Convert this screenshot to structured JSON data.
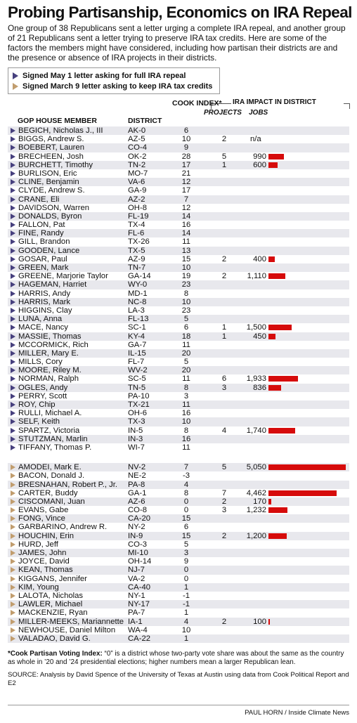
{
  "title": "Probing Partisanship, Economics on IRA Repeal",
  "intro": "One group of 38 Republicans sent a letter urging a complete IRA repeal, and another group of 21 Republicans sent a letter trying to preserve IRA tax credits. Here are some of the factors the members might have considered, including how partisan their districts are and the presence or absence of IRA projects in their districts.",
  "legend": {
    "repeal": "Signed May 1 letter asking for full IRA repeal",
    "keep": "Signed March 9 letter asking to keep IRA tax credits"
  },
  "colors": {
    "repeal": "#47407e",
    "keep": "#c19d6e",
    "bar": "#d60b0b"
  },
  "headers": {
    "member": "GOP HOUSE MEMBER",
    "district": "DISTRICT",
    "cook": "COOK INDEX*",
    "impact": "IRA IMPACT IN DISTRICT",
    "projects": "PROJECTS",
    "jobs": "JOBS"
  },
  "chart_data": {
    "type": "table",
    "title": "Probing Partisanship, Economics on IRA Repeal",
    "jobs_bar_max": 5050,
    "groups": [
      {
        "name": "Signed May 1 letter asking for full IRA repeal",
        "rows": [
          {
            "member": "BEGICH, Nicholas J., III",
            "district": "AK-0",
            "cook": "6",
            "projects": "",
            "jobs": "",
            "jobs_value": null
          },
          {
            "member": "BIGGS, Andrew S.",
            "district": "AZ-5",
            "cook": "10",
            "projects": "2",
            "jobs": "n/a",
            "jobs_value": null
          },
          {
            "member": "BOEBERT, Lauren",
            "district": "CO-4",
            "cook": "9",
            "projects": "",
            "jobs": "",
            "jobs_value": null
          },
          {
            "member": "BRECHEEN, Josh",
            "district": "OK-2",
            "cook": "28",
            "projects": "5",
            "jobs": "990",
            "jobs_value": 990
          },
          {
            "member": "BURCHETT, Timothy",
            "district": "TN-2",
            "cook": "17",
            "projects": "1",
            "jobs": "600",
            "jobs_value": 600
          },
          {
            "member": "BURLISON, Eric",
            "district": "MO-7",
            "cook": "21",
            "projects": "",
            "jobs": "",
            "jobs_value": null
          },
          {
            "member": "CLINE, Benjamin",
            "district": "VA-6",
            "cook": "12",
            "projects": "",
            "jobs": "",
            "jobs_value": null
          },
          {
            "member": "CLYDE, Andrew S.",
            "district": "GA-9",
            "cook": "17",
            "projects": "",
            "jobs": "",
            "jobs_value": null
          },
          {
            "member": "CRANE, Eli",
            "district": "AZ-2",
            "cook": "7",
            "projects": "",
            "jobs": "",
            "jobs_value": null
          },
          {
            "member": "DAVIDSON, Warren",
            "district": "OH-8",
            "cook": "12",
            "projects": "",
            "jobs": "",
            "jobs_value": null
          },
          {
            "member": "DONALDS, Byron",
            "district": "FL-19",
            "cook": "14",
            "projects": "",
            "jobs": "",
            "jobs_value": null
          },
          {
            "member": "FALLON, Pat",
            "district": "TX-4",
            "cook": "16",
            "projects": "",
            "jobs": "",
            "jobs_value": null
          },
          {
            "member": "FINE, Randy",
            "district": "FL-6",
            "cook": "14",
            "projects": "",
            "jobs": "",
            "jobs_value": null
          },
          {
            "member": "GILL, Brandon",
            "district": "TX-26",
            "cook": "11",
            "projects": "",
            "jobs": "",
            "jobs_value": null
          },
          {
            "member": "GOODEN, Lance",
            "district": "TX-5",
            "cook": "13",
            "projects": "",
            "jobs": "",
            "jobs_value": null
          },
          {
            "member": "GOSAR, Paul",
            "district": "AZ-9",
            "cook": "15",
            "projects": "2",
            "jobs": "400",
            "jobs_value": 400
          },
          {
            "member": "GREEN, Mark",
            "district": "TN-7",
            "cook": "10",
            "projects": "",
            "jobs": "",
            "jobs_value": null
          },
          {
            "member": "GREENE, Marjorie Taylor",
            "district": "GA-14",
            "cook": "19",
            "projects": "2",
            "jobs": "1,110",
            "jobs_value": 1110
          },
          {
            "member": "HAGEMAN, Harriet",
            "district": "WY-0",
            "cook": "23",
            "projects": "",
            "jobs": "",
            "jobs_value": null
          },
          {
            "member": "HARRIS, Andy",
            "district": "MD-1",
            "cook": "8",
            "projects": "",
            "jobs": "",
            "jobs_value": null
          },
          {
            "member": "HARRIS, Mark",
            "district": "NC-8",
            "cook": "10",
            "projects": "",
            "jobs": "",
            "jobs_value": null
          },
          {
            "member": "HIGGINS, Clay",
            "district": "LA-3",
            "cook": "23",
            "projects": "",
            "jobs": "",
            "jobs_value": null
          },
          {
            "member": "LUNA, Anna",
            "district": "FL-13",
            "cook": "5",
            "projects": "",
            "jobs": "",
            "jobs_value": null
          },
          {
            "member": "MACE, Nancy",
            "district": "SC-1",
            "cook": "6",
            "projects": "1",
            "jobs": "1,500",
            "jobs_value": 1500
          },
          {
            "member": "MASSIE, Thomas",
            "district": "KY-4",
            "cook": "18",
            "projects": "1",
            "jobs": "450",
            "jobs_value": 450
          },
          {
            "member": "MCCORMICK, Rich",
            "district": "GA-7",
            "cook": "11",
            "projects": "",
            "jobs": "",
            "jobs_value": null
          },
          {
            "member": "MILLER, Mary E.",
            "district": "IL-15",
            "cook": "20",
            "projects": "",
            "jobs": "",
            "jobs_value": null
          },
          {
            "member": "MILLS, Cory",
            "district": "FL-7",
            "cook": "5",
            "projects": "",
            "jobs": "",
            "jobs_value": null
          },
          {
            "member": "MOORE, Riley M.",
            "district": "WV-2",
            "cook": "20",
            "projects": "",
            "jobs": "",
            "jobs_value": null
          },
          {
            "member": "NORMAN, Ralph",
            "district": "SC-5",
            "cook": "11",
            "projects": "6",
            "jobs": "1,933",
            "jobs_value": 1933
          },
          {
            "member": "OGLES, Andy",
            "district": "TN-5",
            "cook": "8",
            "projects": "3",
            "jobs": "836",
            "jobs_value": 836
          },
          {
            "member": "PERRY, Scott",
            "district": "PA-10",
            "cook": "3",
            "projects": "",
            "jobs": "",
            "jobs_value": null
          },
          {
            "member": "ROY, Chip",
            "district": "TX-21",
            "cook": "11",
            "projects": "",
            "jobs": "",
            "jobs_value": null
          },
          {
            "member": "RULLI, Michael A.",
            "district": "OH-6",
            "cook": "16",
            "projects": "",
            "jobs": "",
            "jobs_value": null
          },
          {
            "member": "SELF, Keith",
            "district": "TX-3",
            "cook": "10",
            "projects": "",
            "jobs": "",
            "jobs_value": null
          },
          {
            "member": "SPARTZ, Victoria",
            "district": "IN-5",
            "cook": "8",
            "projects": "4",
            "jobs": "1,740",
            "jobs_value": 1740
          },
          {
            "member": "STUTZMAN, Marlin",
            "district": "IN-3",
            "cook": "16",
            "projects": "",
            "jobs": "",
            "jobs_value": null
          },
          {
            "member": "TIFFANY, Thomas P.",
            "district": "WI-7",
            "cook": "11",
            "projects": "",
            "jobs": "",
            "jobs_value": null
          }
        ]
      },
      {
        "name": "Signed March 9 letter asking to keep IRA tax credits",
        "rows": [
          {
            "member": "AMODEI, Mark E.",
            "district": "NV-2",
            "cook": "7",
            "projects": "5",
            "jobs": "5,050",
            "jobs_value": 5050
          },
          {
            "member": "BACON, Donald J.",
            "district": "NE-2",
            "cook": "-3",
            "projects": "",
            "jobs": "",
            "jobs_value": null
          },
          {
            "member": "BRESNAHAN, Robert P., Jr.",
            "district": "PA-8",
            "cook": "4",
            "projects": "",
            "jobs": "",
            "jobs_value": null
          },
          {
            "member": "CARTER, Buddy",
            "district": "GA-1",
            "cook": "8",
            "projects": "7",
            "jobs": "4,462",
            "jobs_value": 4462
          },
          {
            "member": "CISCOMANI, Juan",
            "district": "AZ-6",
            "cook": "0",
            "projects": "2",
            "jobs": "170",
            "jobs_value": 170
          },
          {
            "member": "EVANS, Gabe",
            "district": "CO-8",
            "cook": "0",
            "projects": "3",
            "jobs": "1,232",
            "jobs_value": 1232
          },
          {
            "member": "FONG, Vince",
            "district": "CA-20",
            "cook": "15",
            "projects": "",
            "jobs": "",
            "jobs_value": null
          },
          {
            "member": "GARBARINO, Andrew R.",
            "district": "NY-2",
            "cook": "6",
            "projects": "",
            "jobs": "",
            "jobs_value": null
          },
          {
            "member": "HOUCHIN, Erin",
            "district": "IN-9",
            "cook": "15",
            "projects": "2",
            "jobs": "1,200",
            "jobs_value": 1200
          },
          {
            "member": "HURD, Jeff",
            "district": "CO-3",
            "cook": "5",
            "projects": "",
            "jobs": "",
            "jobs_value": null
          },
          {
            "member": "JAMES, John",
            "district": "MI-10",
            "cook": "3",
            "projects": "",
            "jobs": "",
            "jobs_value": null
          },
          {
            "member": "JOYCE, David",
            "district": "OH-14",
            "cook": "9",
            "projects": "",
            "jobs": "",
            "jobs_value": null
          },
          {
            "member": "KEAN, Thomas",
            "district": "NJ-7",
            "cook": "0",
            "projects": "",
            "jobs": "",
            "jobs_value": null
          },
          {
            "member": "KIGGANS, Jennifer",
            "district": "VA-2",
            "cook": "0",
            "projects": "",
            "jobs": "",
            "jobs_value": null
          },
          {
            "member": "KIM, Young",
            "district": "CA-40",
            "cook": "1",
            "projects": "",
            "jobs": "",
            "jobs_value": null
          },
          {
            "member": "LALOTA, Nicholas",
            "district": "NY-1",
            "cook": "-1",
            "projects": "",
            "jobs": "",
            "jobs_value": null
          },
          {
            "member": "LAWLER, Michael",
            "district": "NY-17",
            "cook": "-1",
            "projects": "",
            "jobs": "",
            "jobs_value": null
          },
          {
            "member": "MACKENZIE, Ryan",
            "district": "PA-7",
            "cook": "1",
            "projects": "",
            "jobs": "",
            "jobs_value": null
          },
          {
            "member": "MILLER-MEEKS, Mariannette",
            "district": "IA-1",
            "cook": "4",
            "projects": "2",
            "jobs": "100",
            "jobs_value": 100
          },
          {
            "member": "NEWHOUSE, Daniel Milton",
            "district": "WA-4",
            "cook": "10",
            "projects": "",
            "jobs": "",
            "jobs_value": null
          },
          {
            "member": "VALADAO, David G.",
            "district": "CA-22",
            "cook": "1",
            "projects": "",
            "jobs": "",
            "jobs_value": null
          }
        ]
      }
    ]
  },
  "footnote_label": "*Cook Partisan Voting Index:",
  "footnote_text": " “0” is a district whose two-party vote share was about the same as the country as whole in ’20 and ’24 presidential elections; higher numbers mean a larger Republican lean.",
  "source": "SOURCE: Analysis by David Spence of the University of Texas at Austin using data from Cook Political Report and E2",
  "credit": "PAUL HORN / Inside Climate News"
}
